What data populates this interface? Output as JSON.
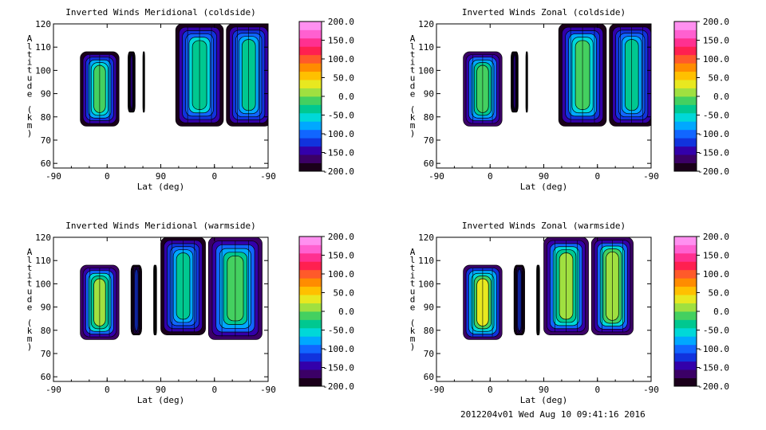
{
  "footer": "2012204v01 Wed Aug 10 09:41:16 2016",
  "colorbar": {
    "ticks": [
      "200.0",
      "150.0",
      "100.0",
      "50.0",
      "0.0",
      "-50.0",
      "-100.0",
      "-150.0",
      "-200.0"
    ],
    "colors": [
      "#1a001a",
      "#3b0066",
      "#3300aa",
      "#1133dd",
      "#1166ff",
      "#00a8ff",
      "#00d8d8",
      "#00c890",
      "#44d060",
      "#a0e040",
      "#e8e820",
      "#ffc000",
      "#ff8c00",
      "#ff5a2a",
      "#ff2050",
      "#ff3090",
      "#ff60d0",
      "#ff90f0"
    ]
  },
  "chart_data": [
    {
      "type": "heatmap",
      "title": "Inverted Winds Meridional (coldside)",
      "xlabel": "Lat (deg)",
      "ylabel": "Altitude (km)",
      "xticks": [
        "-90",
        "0",
        "90",
        "0",
        "-90"
      ],
      "yticks": [
        "60",
        "70",
        "80",
        "90",
        "100",
        "110",
        "120"
      ],
      "ylim": [
        58,
        120
      ],
      "zlim": [
        -200,
        200
      ],
      "blocks": [
        {
          "lat": [
            -45,
            20
          ],
          "alt": [
            76,
            108
          ],
          "level": -20
        },
        {
          "lat": [
            35,
            47
          ],
          "alt": [
            82,
            108
          ],
          "level": -140
        },
        {
          "lat": [
            60,
            63
          ],
          "alt": [
            82,
            108
          ],
          "level": -200
        },
        {
          "lat": [
            115,
            195
          ],
          "alt": [
            76,
            120
          ],
          "level": -30
        },
        {
          "lat": [
            200,
            275
          ],
          "alt": [
            76,
            120
          ],
          "level": -40
        }
      ]
    },
    {
      "type": "heatmap",
      "title": "Inverted Winds Zonal (coldside)",
      "xlabel": "Lat (deg)",
      "ylabel": "Altitude (km)",
      "xticks": [
        "-90",
        "0",
        "90",
        "0",
        "-90"
      ],
      "yticks": [
        "60",
        "70",
        "80",
        "90",
        "100",
        "110",
        "120"
      ],
      "ylim": [
        58,
        120
      ],
      "zlim": [
        -200,
        200
      ],
      "blocks": [
        {
          "lat": [
            -45,
            20
          ],
          "alt": [
            76,
            108
          ],
          "level": -10
        },
        {
          "lat": [
            35,
            47
          ],
          "alt": [
            82,
            108
          ],
          "level": -140
        },
        {
          "lat": [
            60,
            63
          ],
          "alt": [
            82,
            108
          ],
          "level": -200
        },
        {
          "lat": [
            115,
            195
          ],
          "alt": [
            76,
            120
          ],
          "level": -20
        },
        {
          "lat": [
            200,
            275
          ],
          "alt": [
            76,
            120
          ],
          "level": -40
        }
      ]
    },
    {
      "type": "heatmap",
      "title": "Inverted Winds Meridional (warmside)",
      "xlabel": "Lat (deg)",
      "ylabel": "Altitude (km)",
      "xticks": [
        "-90",
        "0",
        "90",
        "0",
        "-90"
      ],
      "yticks": [
        "60",
        "70",
        "80",
        "90",
        "100",
        "110",
        "120"
      ],
      "ylim": [
        58,
        120
      ],
      "zlim": [
        -200,
        200
      ],
      "blocks": [
        {
          "lat": [
            -45,
            20
          ],
          "alt": [
            76,
            108
          ],
          "level": 10
        },
        {
          "lat": [
            40,
            58
          ],
          "alt": [
            78,
            108
          ],
          "level": -130
        },
        {
          "lat": [
            78,
            83
          ],
          "alt": [
            78,
            108
          ],
          "level": -200
        },
        {
          "lat": [
            90,
            165
          ],
          "alt": [
            78,
            120
          ],
          "level": -40
        },
        {
          "lat": [
            170,
            260
          ],
          "alt": [
            76,
            120
          ],
          "level": -10
        }
      ]
    },
    {
      "type": "heatmap",
      "title": "Inverted Winds Zonal (warmside)",
      "xlabel": "Lat (deg)",
      "ylabel": "Altitude (km)",
      "xticks": [
        "-90",
        "0",
        "90",
        "0",
        "-90"
      ],
      "yticks": [
        "60",
        "70",
        "80",
        "90",
        "100",
        "110",
        "120"
      ],
      "ylim": [
        58,
        120
      ],
      "zlim": [
        -200,
        200
      ],
      "blocks": [
        {
          "lat": [
            -45,
            20
          ],
          "alt": [
            76,
            108
          ],
          "level": 40
        },
        {
          "lat": [
            40,
            58
          ],
          "alt": [
            78,
            108
          ],
          "level": -130
        },
        {
          "lat": [
            78,
            83
          ],
          "alt": [
            78,
            108
          ],
          "level": -200
        },
        {
          "lat": [
            90,
            165
          ],
          "alt": [
            78,
            120
          ],
          "level": 10
        },
        {
          "lat": [
            170,
            240
          ],
          "alt": [
            78,
            120
          ],
          "level": 20
        }
      ]
    }
  ]
}
